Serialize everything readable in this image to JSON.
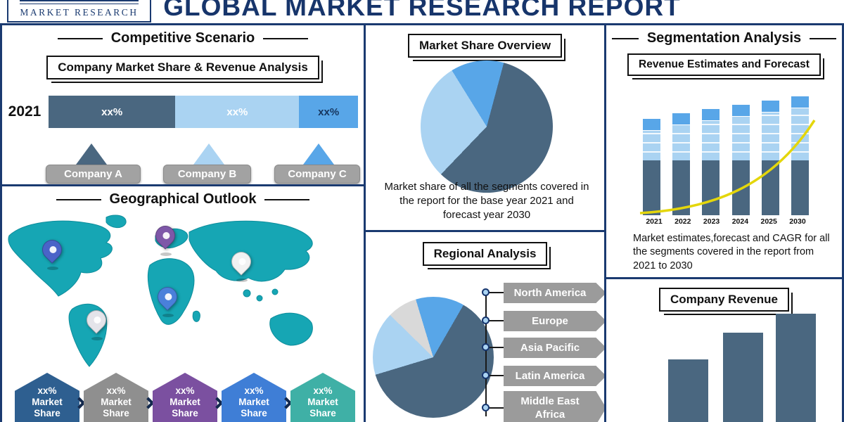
{
  "palette": {
    "navy": "#1a3a70",
    "dark_slate": "#4a6780",
    "light_blue": "#aad3f2",
    "mid_blue": "#58a6e8",
    "gray": "#9b9b9b",
    "teal": "#16a6b4",
    "yellow": "#e4d60b"
  },
  "header": {
    "title": "GLOBAL MARKET RESEARCH REPORT",
    "logo_text": "MARKET RESEARCH"
  },
  "competitive": {
    "title": "Competitive Scenario",
    "subtitle": "Company Market Share & Revenue Analysis",
    "year_label": "2021",
    "companies": [
      "Company A",
      "Company B",
      "Company C"
    ]
  },
  "geographical": {
    "title": "Geographical Outlook",
    "badges": [
      {
        "label": "xx% Market Share",
        "color": "#2e5f90"
      },
      {
        "label": "xx% Market Share",
        "color": "#8f8f8f"
      },
      {
        "label": "xx% Market Share",
        "color": "#7b50a0"
      },
      {
        "label": "xx% Market Share",
        "color": "#3f7ed6"
      },
      {
        "label": "xx% Market Share",
        "color": "#3fb0a6"
      }
    ],
    "pins": [
      {
        "color": "#4a63c8"
      },
      {
        "color": "#7e57a8"
      },
      {
        "color": "#4a80da"
      },
      {
        "color": "#e4e4ea"
      },
      {
        "color": "#f2f2f2"
      }
    ]
  },
  "market_share_overview": {
    "title": "Market Share Overview",
    "description": "Market share of all the segments covered in the report for the base year 2021 and forecast year 2030"
  },
  "regional": {
    "title": "Regional Analysis",
    "regions": [
      "North America",
      "Europe",
      "Asia Pacific",
      "Latin America",
      "Middle East Africa"
    ]
  },
  "segmentation": {
    "title": "Segmentation Analysis",
    "subtitle": "Revenue Estimates and Forecast",
    "description": "Market estimates,forecast and CAGR for all the segments covered in the report from 2021 to 2030"
  },
  "company_revenue": {
    "title": "Company Revenue"
  },
  "chart_data": [
    {
      "id": "company-market-share-2021",
      "type": "bar",
      "variant": "horizontal-stacked",
      "categories": [
        "2021"
      ],
      "series": [
        {
          "name": "Company A",
          "color": "#4a6780",
          "values": [
            41
          ],
          "value_label": "xx%"
        },
        {
          "name": "Company B",
          "color": "#aad3f2",
          "values": [
            40
          ],
          "value_label": "xx%"
        },
        {
          "name": "Company C",
          "color": "#58a6e8",
          "values": [
            19
          ],
          "value_label": "xx%"
        }
      ],
      "note": "segment widths in % of bar; displayed values are xx% placeholders"
    },
    {
      "id": "market-share-overview-pie",
      "type": "pie",
      "from_deg": 15,
      "slices": [
        {
          "name": "slice-1",
          "value": 58,
          "color": "#4a6780"
        },
        {
          "name": "slice-2",
          "value": 29,
          "color": "#aad3f2"
        },
        {
          "name": "slice-3",
          "value": 13,
          "color": "#58a6e8"
        }
      ]
    },
    {
      "id": "regional-analysis-pie",
      "type": "pie",
      "from_deg": 30,
      "slices": [
        {
          "name": "slice-1",
          "value": 62,
          "color": "#4a6780"
        },
        {
          "name": "slice-2",
          "value": 17,
          "color": "#aad3f2"
        },
        {
          "name": "slice-3",
          "value": 8,
          "color": "#d9d9d9"
        },
        {
          "name": "slice-4",
          "value": 13,
          "color": "#58a6e8"
        }
      ],
      "legend": [
        "North America",
        "Europe",
        "Asia Pacific",
        "Latin America",
        "Middle East Africa"
      ],
      "legend_position": "right"
    },
    {
      "id": "revenue-estimates-stacked",
      "type": "bar",
      "variant": "vertical-stacked",
      "categories": [
        "2021",
        "2022",
        "2023",
        "2024",
        "2025",
        "2030"
      ],
      "series": [
        {
          "name": "segment-bottom",
          "color": "#4a6780",
          "values": [
            78,
            78,
            78,
            78,
            78,
            78
          ]
        },
        {
          "name": "segment-middle",
          "color": "#aad3f2",
          "values": [
            42,
            50,
            56,
            62,
            68,
            74
          ]
        },
        {
          "name": "segment-top",
          "color": "#58a6e8",
          "values": [
            16,
            16,
            16,
            16,
            16,
            16
          ]
        }
      ],
      "trend_line": {
        "color": "#e4d60b",
        "shape": "rising-cagr-curve"
      },
      "units": "relative (no axis labels shown)"
    },
    {
      "id": "company-revenue-bars",
      "type": "bar",
      "color": "#4a6780",
      "categories": [
        "bar-1",
        "bar-2",
        "bar-3"
      ],
      "values": [
        92,
        130,
        157
      ],
      "units": "relative (no axis labels shown)"
    }
  ]
}
